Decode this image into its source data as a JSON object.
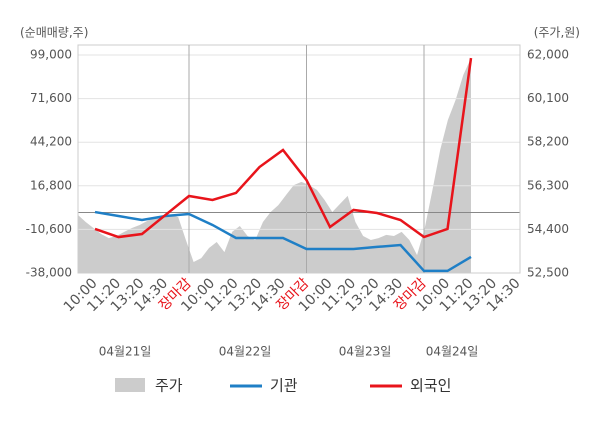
{
  "chart_data": {
    "type": "line",
    "y_label": "(순매매량,주)",
    "y2_label": "(주가,원)",
    "categories": [
      "10:00",
      "11:20",
      "13:20",
      "14:30",
      "장마감",
      "10:00",
      "11:20",
      "13:20",
      "14:30",
      "장마감",
      "10:00",
      "11:20",
      "13:20",
      "14:30",
      "장마감",
      "10:00",
      "11:20",
      "13:20",
      "14:30"
    ],
    "close_label": "장마감",
    "dates": [
      "04월21일",
      "04월22일",
      "04월23일",
      "04월24일"
    ],
    "ylim": [
      -38000,
      99000
    ],
    "yticks": [
      {
        "value": 99000,
        "label": "99,000"
      },
      {
        "value": 71600,
        "label": "71,600"
      },
      {
        "value": 44200,
        "label": "44,200"
      },
      {
        "value": 16800,
        "label": "16,800"
      },
      {
        "value": -10600,
        "label": "-10,600"
      },
      {
        "value": -38000,
        "label": "-38,000"
      }
    ],
    "y2lim": [
      52500,
      62000
    ],
    "y2ticks": [
      {
        "value": 62000,
        "label": "62,000"
      },
      {
        "value": 60100,
        "label": "60,100"
      },
      {
        "value": 58200,
        "label": "58,200"
      },
      {
        "value": 56300,
        "label": "56,300"
      },
      {
        "value": 54400,
        "label": "54,400"
      },
      {
        "value": 52500,
        "label": "52,500"
      }
    ],
    "grid": true,
    "price": {
      "name": "주가",
      "color": "#cccccc",
      "axis": "y2",
      "values": [
        55030,
        54720,
        54460,
        54200,
        54020,
        54110,
        54290,
        54460,
        54590,
        54770,
        54900,
        54990,
        55030,
        54940,
        53940,
        52980,
        53150,
        53590,
        53850,
        53410,
        54290,
        54550,
        54110,
        53940,
        54720,
        55160,
        55460,
        55900,
        56330,
        56470,
        56330,
        56120,
        55680,
        55160,
        55510,
        55860,
        54720,
        54110,
        53940,
        54020,
        54160,
        54110,
        54290,
        53940,
        53280,
        54460,
        56120,
        57860,
        59170,
        60040,
        61130,
        61870
      ]
    },
    "series": [
      {
        "name": "기관",
        "color": "#1f7fc6",
        "values": [
          300,
          -2200,
          -4700,
          -2200,
          -900,
          -7800,
          -16000,
          -16000,
          -16000,
          -22900,
          -22900,
          -22900,
          -21600,
          -20400,
          -36700,
          -36700,
          -27900,
          null,
          null
        ]
      },
      {
        "name": "외국인",
        "color": "#e8141b",
        "values": [
          -10300,
          -15400,
          -13500,
          -1500,
          10400,
          7900,
          12300,
          28600,
          39300,
          20400,
          -9100,
          1600,
          -300,
          -4700,
          -15400,
          -10300,
          97100,
          null,
          null
        ]
      }
    ]
  }
}
